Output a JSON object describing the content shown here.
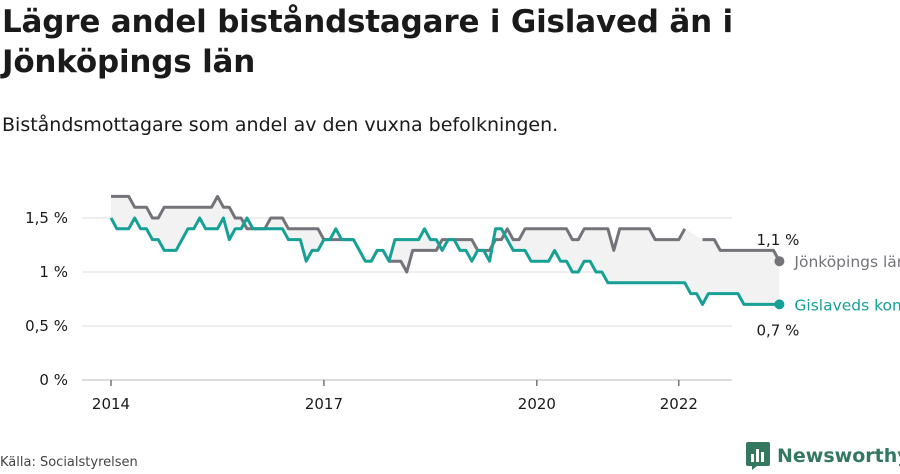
{
  "header": {
    "title": "Lägre andel biståndstagare i Gislaved än i Jönköpings län",
    "subtitle": "Biståndsmottagare som andel av den vuxna befolkningen."
  },
  "footer": {
    "source": "Källa: Socialstyrelsen",
    "brand": "Newsworthy",
    "brand_icon": "bar-chart-logo-icon",
    "brand_color": "#33785f"
  },
  "colors": {
    "gislaved": "#16a096",
    "jonkoping": "#757379",
    "area": "#f2f2f2",
    "grid": "#dddddd"
  },
  "chart_data": {
    "type": "line",
    "x_unit": "month",
    "x_start": "2014-01",
    "x_end": "2022-06",
    "xlim": [
      "2014-01",
      "2022-06"
    ],
    "xticks": [
      "2014",
      "2017",
      "2020",
      "2022"
    ],
    "ylim": [
      0,
      1.8
    ],
    "yticks": [
      0,
      0.5,
      1,
      1.5
    ],
    "ytick_labels": [
      "0 %",
      "0,5 %",
      "1 %",
      "1,5 %"
    ],
    "grid": true,
    "series": [
      {
        "name": "Jönköpings län",
        "color": "#757379",
        "end_value": 1.1,
        "end_label": "1,1 %",
        "values": [
          1.7,
          1.7,
          1.7,
          1.7,
          1.6,
          1.6,
          1.6,
          1.5,
          1.5,
          1.6,
          1.6,
          1.6,
          1.6,
          1.6,
          1.6,
          1.6,
          1.6,
          1.6,
          1.7,
          1.6,
          1.6,
          1.5,
          1.5,
          1.4,
          1.4,
          1.4,
          1.4,
          1.5,
          1.5,
          1.5,
          1.4,
          1.4,
          1.4,
          1.4,
          1.4,
          1.4,
          1.3,
          1.3,
          1.3,
          1.3,
          1.3,
          1.3,
          null,
          null,
          1.1,
          1.2,
          null,
          1.1,
          1.1,
          1.1,
          1.0,
          1.2,
          1.2,
          1.2,
          1.2,
          1.2,
          1.3,
          1.3,
          1.3,
          1.3,
          1.3,
          1.3,
          1.2,
          1.2,
          1.2,
          1.3,
          1.3,
          1.4,
          1.3,
          1.3,
          1.4,
          1.4,
          1.4,
          1.4,
          1.4,
          1.4,
          1.4,
          1.4,
          1.3,
          1.3,
          1.4,
          1.4,
          1.4,
          1.4,
          1.4,
          1.2,
          1.4,
          1.4,
          1.4,
          1.4,
          1.4,
          1.4,
          1.3,
          1.3,
          1.3,
          1.3,
          1.3,
          1.4,
          null,
          null,
          1.3,
          1.3,
          1.3,
          1.2,
          1.2,
          1.2,
          1.2,
          1.2,
          1.2,
          1.2,
          1.2,
          1.2,
          1.2,
          1.1
        ]
      },
      {
        "name": "Gislaveds kommun",
        "color": "#16a096",
        "end_value": 0.7,
        "end_label": "0,7 %",
        "values": [
          1.5,
          1.4,
          1.4,
          1.4,
          1.5,
          1.4,
          1.4,
          1.3,
          1.3,
          1.2,
          1.2,
          1.2,
          1.3,
          1.4,
          1.4,
          1.5,
          1.4,
          1.4,
          1.4,
          1.5,
          1.3,
          1.4,
          1.4,
          1.5,
          1.4,
          1.4,
          1.4,
          1.4,
          1.4,
          1.4,
          1.3,
          1.3,
          1.3,
          1.1,
          1.2,
          1.2,
          1.3,
          1.3,
          1.4,
          1.3,
          1.3,
          1.3,
          1.2,
          1.1,
          1.1,
          1.2,
          1.2,
          1.1,
          1.3,
          1.3,
          1.3,
          1.3,
          1.3,
          1.4,
          1.3,
          1.3,
          1.2,
          1.3,
          1.3,
          1.2,
          1.2,
          1.1,
          1.2,
          1.2,
          1.1,
          1.4,
          1.4,
          1.3,
          1.2,
          1.2,
          1.2,
          1.1,
          1.1,
          1.1,
          1.1,
          1.2,
          1.1,
          1.1,
          1.0,
          1.0,
          1.1,
          1.1,
          1.0,
          1.0,
          0.9,
          0.9,
          0.9,
          0.9,
          0.9,
          0.9,
          0.9,
          0.9,
          0.9,
          0.9,
          0.9,
          0.9,
          0.9,
          0.9,
          0.8,
          0.8,
          0.7,
          0.8,
          0.8,
          0.8,
          0.8,
          0.8,
          0.8,
          0.7,
          0.7,
          0.7,
          0.7,
          0.7,
          0.7,
          0.7
        ]
      }
    ]
  }
}
